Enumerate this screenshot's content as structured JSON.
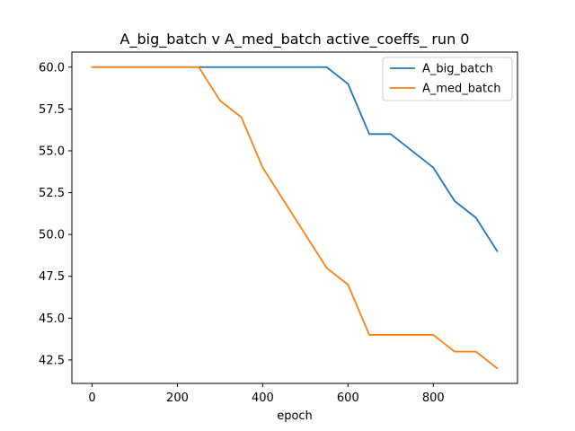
{
  "chart_data": {
    "type": "line",
    "title": "A_big_batch v A_med_batch active_coeffs_ run 0",
    "xlabel": "epoch",
    "ylabel": "",
    "xlim": [
      -47.5,
      997.5
    ],
    "ylim": [
      41.1,
      60.9
    ],
    "xticks": [
      0,
      200,
      400,
      600,
      800
    ],
    "yticks": [
      42.5,
      45.0,
      47.5,
      50.0,
      52.5,
      55.0,
      57.5,
      60.0
    ],
    "x": [
      0,
      50,
      100,
      150,
      200,
      250,
      300,
      350,
      400,
      450,
      500,
      550,
      600,
      650,
      700,
      750,
      800,
      850,
      900,
      950
    ],
    "series": [
      {
        "name": "A_big_batch",
        "color": "#1f77b4",
        "values": [
          60,
          60,
          60,
          60,
          60,
          60,
          60,
          60,
          60,
          60,
          60,
          60,
          59,
          56,
          56,
          55,
          54,
          52,
          51,
          49
        ]
      },
      {
        "name": "A_med_batch",
        "color": "#ff7f0e",
        "values": [
          60,
          60,
          60,
          60,
          60,
          60,
          58,
          57,
          54,
          52,
          50,
          48,
          47,
          44,
          44,
          44,
          44,
          43,
          43,
          42
        ]
      }
    ],
    "legend": "top-right",
    "grid": false
  }
}
